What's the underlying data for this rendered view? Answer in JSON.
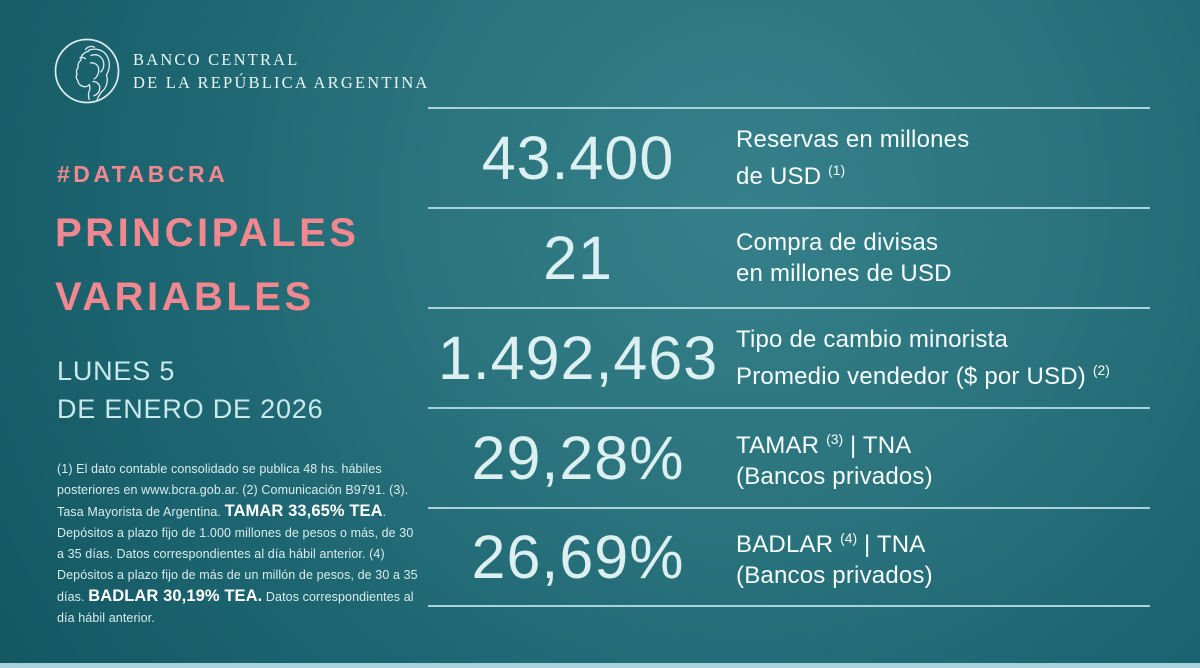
{
  "brand": {
    "logo_icon": "bcra-liberty-head-icon",
    "name_line1": "BANCO CENTRAL",
    "name_line2": "DE LA REPÚBLICA ARGENTINA"
  },
  "header": {
    "hashtag": "#DATABCRA",
    "title_line1": "PRINCIPALES",
    "title_line2": "VARIABLES",
    "date_line1": "LUNES 5",
    "date_line2": "DE ENERO DE 2026"
  },
  "table": {
    "rows": [
      {
        "value": "43.400",
        "label_lines": [
          [
            {
              "t": "Reservas en millones"
            }
          ],
          [
            {
              "t": "de USD "
            },
            {
              "t": "(1)",
              "sup": true
            }
          ]
        ]
      },
      {
        "value": "21",
        "label_lines": [
          [
            {
              "t": "Compra de divisas"
            }
          ],
          [
            {
              "t": "en millones de USD"
            }
          ]
        ]
      },
      {
        "value": "1.492,463",
        "label_lines": [
          [
            {
              "t": "Tipo de cambio minorista"
            }
          ],
          [
            {
              "t": "Promedio vendedor ($ por USD) "
            },
            {
              "t": "(2)",
              "sup": true
            }
          ]
        ]
      },
      {
        "value": "29,28%",
        "label_lines": [
          [
            {
              "t": "TAMAR "
            },
            {
              "t": "(3)",
              "sup": true
            },
            {
              "t": " | TNA"
            }
          ],
          [
            {
              "t": "(Bancos privados)"
            }
          ]
        ]
      },
      {
        "value": "26,69%",
        "label_lines": [
          [
            {
              "t": "BADLAR "
            },
            {
              "t": "(4)",
              "sup": true
            },
            {
              "t": " | TNA"
            }
          ],
          [
            {
              "t": "(Bancos privados)"
            }
          ]
        ]
      }
    ]
  },
  "footnote": {
    "segments": [
      {
        "t": "(1) El dato contable consolidado se publica 48 hs. hábiles posteriores en www.bcra.gob.ar. (2) Comunicación B9791. (3). Tasa Mayorista de Argentina. "
      },
      {
        "t": "TAMAR 33,65% TEA",
        "bold": true
      },
      {
        "t": ". Depósitos a plazo fijo de 1.000 millones de pesos o más, de 30 a 35 días. Datos correspondientes al día hábil anterior. (4) Depósitos a plazo fijo de más de un millón de pesos, de 30 a 35 días. "
      },
      {
        "t": "BADLAR 30,19% TEA.",
        "bold": true
      },
      {
        "t": " Datos correspondientes al día hábil anterior."
      }
    ]
  },
  "chart_data": {
    "type": "table",
    "title": "PRINCIPALES VARIABLES",
    "subtitle": "#DATABCRA",
    "date": "LUNES 5 DE ENERO DE 2026",
    "columns": [
      "valor",
      "variable"
    ],
    "rows": [
      {
        "valor": "43.400",
        "variable": "Reservas en millones de USD (1)"
      },
      {
        "valor": "21",
        "variable": "Compra de divisas en millones de USD"
      },
      {
        "valor": "1.492,463",
        "variable": "Tipo de cambio minorista Promedio vendedor ($ por USD) (2)"
      },
      {
        "valor": "29,28%",
        "variable": "TAMAR (3) | TNA (Bancos privados)"
      },
      {
        "valor": "26,69%",
        "variable": "BADLAR (4) | TNA (Bancos privados)"
      }
    ],
    "annotations": {
      "tamar_tea": "TAMAR 33,65% TEA",
      "badlar_tea": "BADLAR 30,19% TEA"
    }
  },
  "colors": {
    "background_center": "#35808a",
    "background_edge": "#114e59",
    "accent_pink": "#f2888f",
    "date_text": "#c9e9ec",
    "value_text": "#dceff1",
    "label_text": "#f7fdfd",
    "separator": "#a9d3dc",
    "footnote_text": "#d9ebed"
  }
}
